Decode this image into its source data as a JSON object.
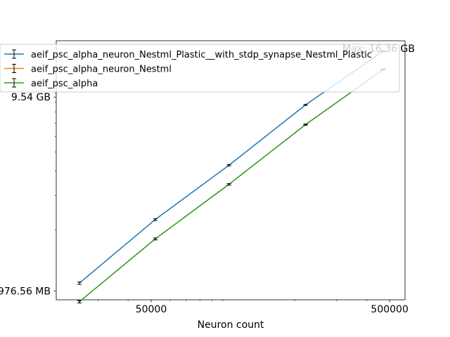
{
  "chart_data": {
    "type": "line",
    "title": "",
    "xlabel": "Neuron count",
    "ylabel": "",
    "x_scale": "log",
    "y_scale": "log",
    "xlim": [
      20000,
      580000
    ],
    "ylim": [
      880,
      18500
    ],
    "grid": false,
    "legend_placement": "top-left",
    "x_ticks": [
      {
        "value": 50000,
        "label": "50000"
      },
      {
        "value": 500000,
        "label": "500000"
      }
    ],
    "y_ticks": [
      {
        "value": 976.56,
        "label": "976.56 MB"
      },
      {
        "value": 9540,
        "label": "9.54 GB"
      }
    ],
    "annotation": "Max: 16.36 GB",
    "x": [
      25000,
      52000,
      106000,
      222000,
      470000
    ],
    "series": [
      {
        "name": "aeif_psc_alpha_neuron_Nestml_Plastic__with_stdp_synapse_Nestml_Plastic",
        "color": "#1f77b4",
        "values": [
          1070,
          2260,
          4280,
          8700,
          16360
        ],
        "errors": [
          15,
          25,
          35,
          50,
          60
        ]
      },
      {
        "name": "aeif_psc_alpha_neuron_Nestml",
        "color": "#ff7f0e",
        "values": [
          860,
          1800,
          3420,
          6900,
          13200
        ],
        "errors": [
          12,
          20,
          30,
          45,
          55
        ]
      },
      {
        "name": "aeif_psc_alpha",
        "color": "#2ca02c",
        "values": [
          860,
          1800,
          3420,
          6900,
          13200
        ],
        "errors": [
          12,
          20,
          30,
          45,
          55
        ]
      }
    ]
  }
}
